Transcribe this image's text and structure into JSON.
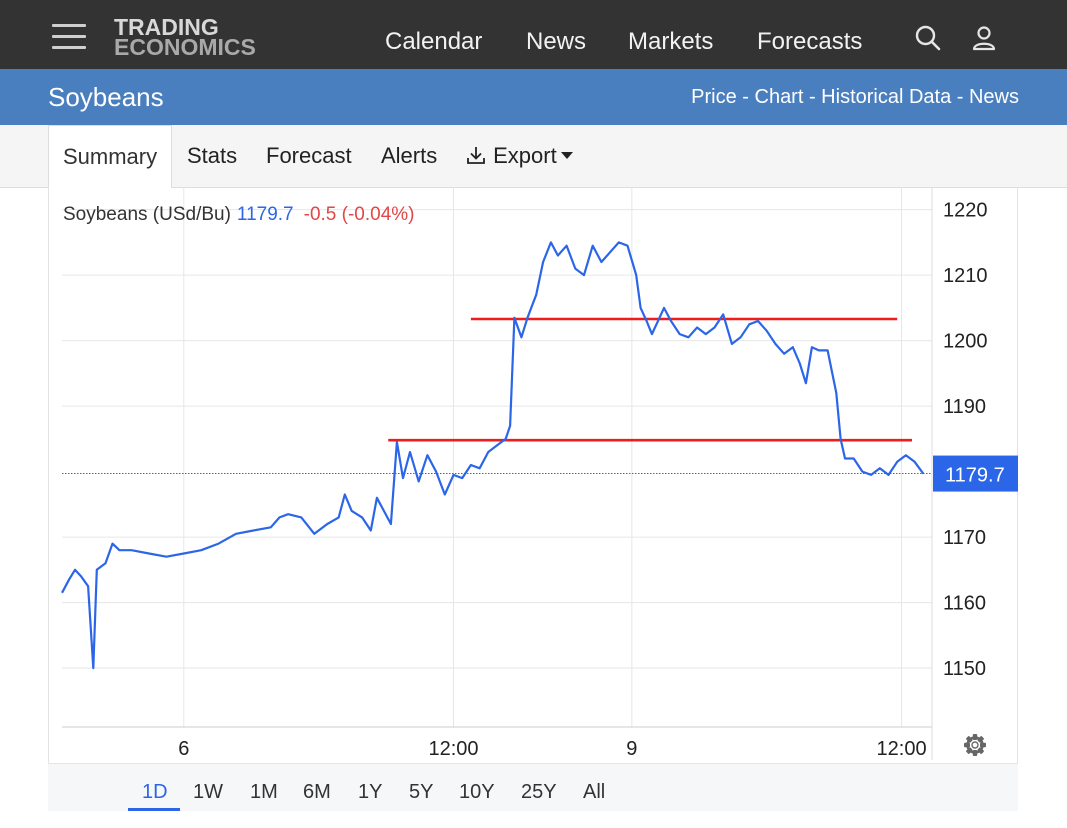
{
  "header": {
    "logo_line1": "TRADING",
    "logo_line2": "ECONOMICS",
    "nav": [
      "Calendar",
      "News",
      "Markets",
      "Forecasts"
    ]
  },
  "subheader": {
    "title": "Soybeans",
    "links": "Price - Chart - Historical Data - News"
  },
  "tabs": {
    "summary": "Summary",
    "stats": "Stats",
    "forecast": "Forecast",
    "alerts": "Alerts",
    "export": "Export"
  },
  "legend": {
    "name": "Soybeans (USd/Bu)",
    "price": "1179.7",
    "change": "-0.5 (-0.04%)"
  },
  "ranges": [
    "1D",
    "1W",
    "1M",
    "6M",
    "1Y",
    "5Y",
    "10Y",
    "25Y",
    "All"
  ],
  "selected_range": "1D",
  "colors": {
    "line": "#2c66e8",
    "change_negative": "#e04848",
    "annotation": "#ee1c1c",
    "header_bg": "#333333",
    "subheader_bg": "#4a7fbf"
  },
  "chart_data": {
    "type": "line",
    "ylim": [
      1141,
      1223
    ],
    "y_ticks": [
      1150,
      1160,
      1170,
      1190,
      1200,
      1210,
      1220
    ],
    "x_ticks": [
      {
        "t": 0.14,
        "label": "6"
      },
      {
        "t": 0.45,
        "label": "12:00"
      },
      {
        "t": 0.655,
        "label": "9"
      },
      {
        "t": 0.965,
        "label": "12:00"
      }
    ],
    "last_value": 1179.7,
    "last_label": "1179.7",
    "series": [
      {
        "points": [
          [
            0.0,
            1161.5
          ],
          [
            0.008,
            1163.5
          ],
          [
            0.015,
            1165.0
          ],
          [
            0.022,
            1164.0
          ],
          [
            0.03,
            1162.5
          ],
          [
            0.036,
            1150.0
          ],
          [
            0.04,
            1165.0
          ],
          [
            0.05,
            1166.0
          ],
          [
            0.058,
            1169.0
          ],
          [
            0.066,
            1168.0
          ],
          [
            0.08,
            1168.0
          ],
          [
            0.1,
            1167.5
          ],
          [
            0.12,
            1167.0
          ],
          [
            0.14,
            1167.5
          ],
          [
            0.16,
            1168.0
          ],
          [
            0.18,
            1169.0
          ],
          [
            0.2,
            1170.5
          ],
          [
            0.22,
            1171.0
          ],
          [
            0.24,
            1171.5
          ],
          [
            0.25,
            1173.0
          ],
          [
            0.26,
            1173.5
          ],
          [
            0.275,
            1173.0
          ],
          [
            0.29,
            1170.5
          ],
          [
            0.305,
            1172.0
          ],
          [
            0.318,
            1173.0
          ],
          [
            0.325,
            1176.5
          ],
          [
            0.333,
            1174.0
          ],
          [
            0.345,
            1173.0
          ],
          [
            0.355,
            1171.0
          ],
          [
            0.362,
            1176.0
          ],
          [
            0.37,
            1174.0
          ],
          [
            0.378,
            1172.0
          ],
          [
            0.385,
            1184.5
          ],
          [
            0.392,
            1179.0
          ],
          [
            0.4,
            1183.0
          ],
          [
            0.41,
            1178.5
          ],
          [
            0.42,
            1182.5
          ],
          [
            0.43,
            1180.0
          ],
          [
            0.44,
            1176.5
          ],
          [
            0.45,
            1179.5
          ],
          [
            0.46,
            1179.0
          ],
          [
            0.47,
            1181.0
          ],
          [
            0.48,
            1180.5
          ],
          [
            0.49,
            1183.0
          ],
          [
            0.5,
            1184.0
          ],
          [
            0.51,
            1185.0
          ],
          [
            0.515,
            1187.0
          ],
          [
            0.52,
            1203.5
          ],
          [
            0.528,
            1200.5
          ],
          [
            0.535,
            1203.5
          ],
          [
            0.545,
            1207.0
          ],
          [
            0.553,
            1212.0
          ],
          [
            0.562,
            1215.0
          ],
          [
            0.57,
            1213.0
          ],
          [
            0.58,
            1214.5
          ],
          [
            0.59,
            1211.0
          ],
          [
            0.6,
            1210.0
          ],
          [
            0.61,
            1214.5
          ],
          [
            0.62,
            1212.0
          ],
          [
            0.63,
            1213.5
          ],
          [
            0.64,
            1215.0
          ],
          [
            0.65,
            1214.5
          ],
          [
            0.66,
            1210.0
          ],
          [
            0.665,
            1205.0
          ],
          [
            0.672,
            1203.0
          ],
          [
            0.678,
            1201.0
          ],
          [
            0.685,
            1203.0
          ],
          [
            0.692,
            1205.0
          ],
          [
            0.7,
            1203.0
          ],
          [
            0.71,
            1201.0
          ],
          [
            0.72,
            1200.5
          ],
          [
            0.73,
            1202.0
          ],
          [
            0.74,
            1201.0
          ],
          [
            0.75,
            1202.0
          ],
          [
            0.76,
            1204.0
          ],
          [
            0.77,
            1199.5
          ],
          [
            0.78,
            1200.5
          ],
          [
            0.79,
            1202.5
          ],
          [
            0.8,
            1203.0
          ],
          [
            0.81,
            1201.5
          ],
          [
            0.82,
            1199.5
          ],
          [
            0.83,
            1198.0
          ],
          [
            0.84,
            1199.0
          ],
          [
            0.848,
            1196.5
          ],
          [
            0.855,
            1193.5
          ],
          [
            0.862,
            1199.0
          ],
          [
            0.87,
            1198.5
          ],
          [
            0.88,
            1198.5
          ],
          [
            0.89,
            1192.0
          ],
          [
            0.895,
            1185.0
          ],
          [
            0.9,
            1182.0
          ],
          [
            0.91,
            1182.0
          ],
          [
            0.92,
            1180.0
          ],
          [
            0.93,
            1179.5
          ],
          [
            0.94,
            1180.5
          ],
          [
            0.95,
            1179.5
          ],
          [
            0.96,
            1181.5
          ],
          [
            0.97,
            1182.5
          ],
          [
            0.98,
            1181.5
          ],
          [
            0.99,
            1179.7
          ]
        ]
      }
    ],
    "annotations": [
      {
        "type": "hline",
        "value": 1203.3,
        "from": 0.47,
        "to": 0.96
      },
      {
        "type": "hline",
        "value": 1184.8,
        "from": 0.375,
        "to": 0.977
      }
    ]
  }
}
